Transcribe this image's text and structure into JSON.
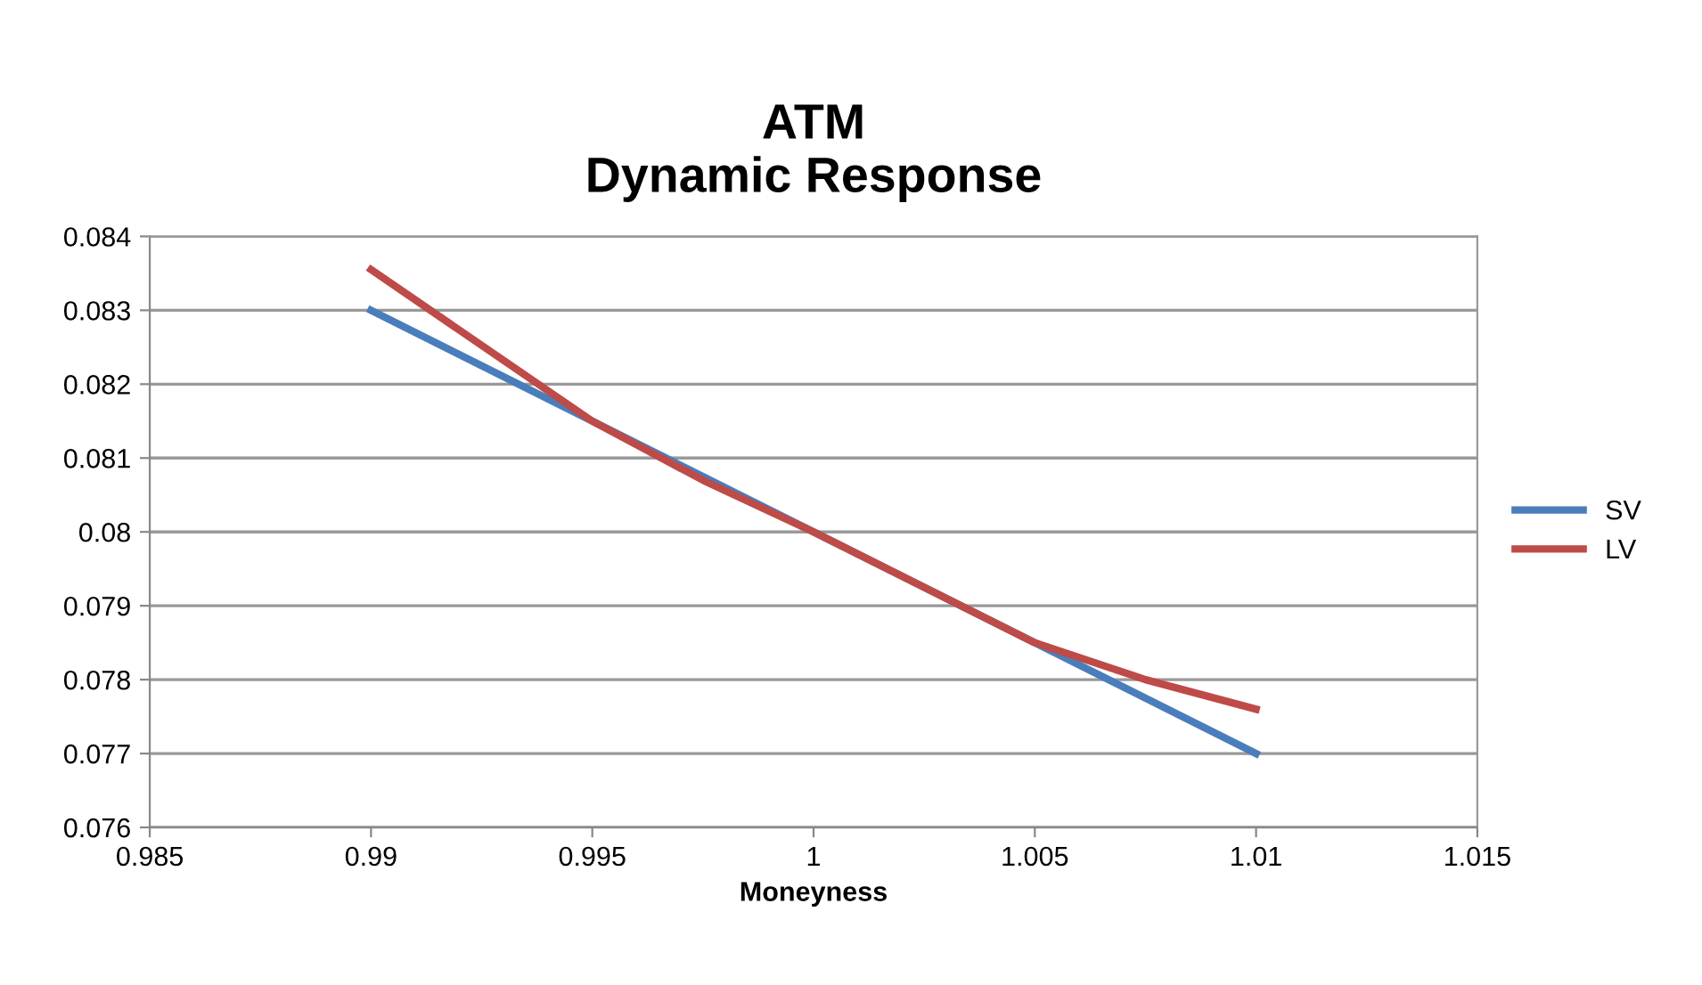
{
  "chart_data": {
    "type": "line",
    "title": "ATM\nDynamic Response",
    "xlabel": "Moneyness",
    "series": [
      {
        "name": "SV",
        "color": "#4a7ebb",
        "x": [
          0.99,
          1.0,
          1.01
        ],
        "values": [
          0.083,
          0.08,
          0.077
        ]
      },
      {
        "name": "LV",
        "color": "#be4b48",
        "x": [
          0.99,
          0.995,
          0.9975,
          1.0,
          1.005,
          1.0075,
          1.01
        ],
        "values": [
          0.08355,
          0.0815,
          0.0807,
          0.08,
          0.0785,
          0.078,
          0.0776
        ]
      }
    ],
    "xlim": [
      0.985,
      1.015
    ],
    "xticks": [
      0.985,
      0.99,
      0.995,
      1,
      1.005,
      1.01,
      1.015
    ],
    "ylim": [
      0.076,
      0.084
    ],
    "yticks": [
      0.076,
      0.077,
      0.078,
      0.079,
      0.08,
      0.081,
      0.082,
      0.083,
      0.084
    ],
    "grid": "y",
    "legend": "right",
    "marker": "none"
  }
}
